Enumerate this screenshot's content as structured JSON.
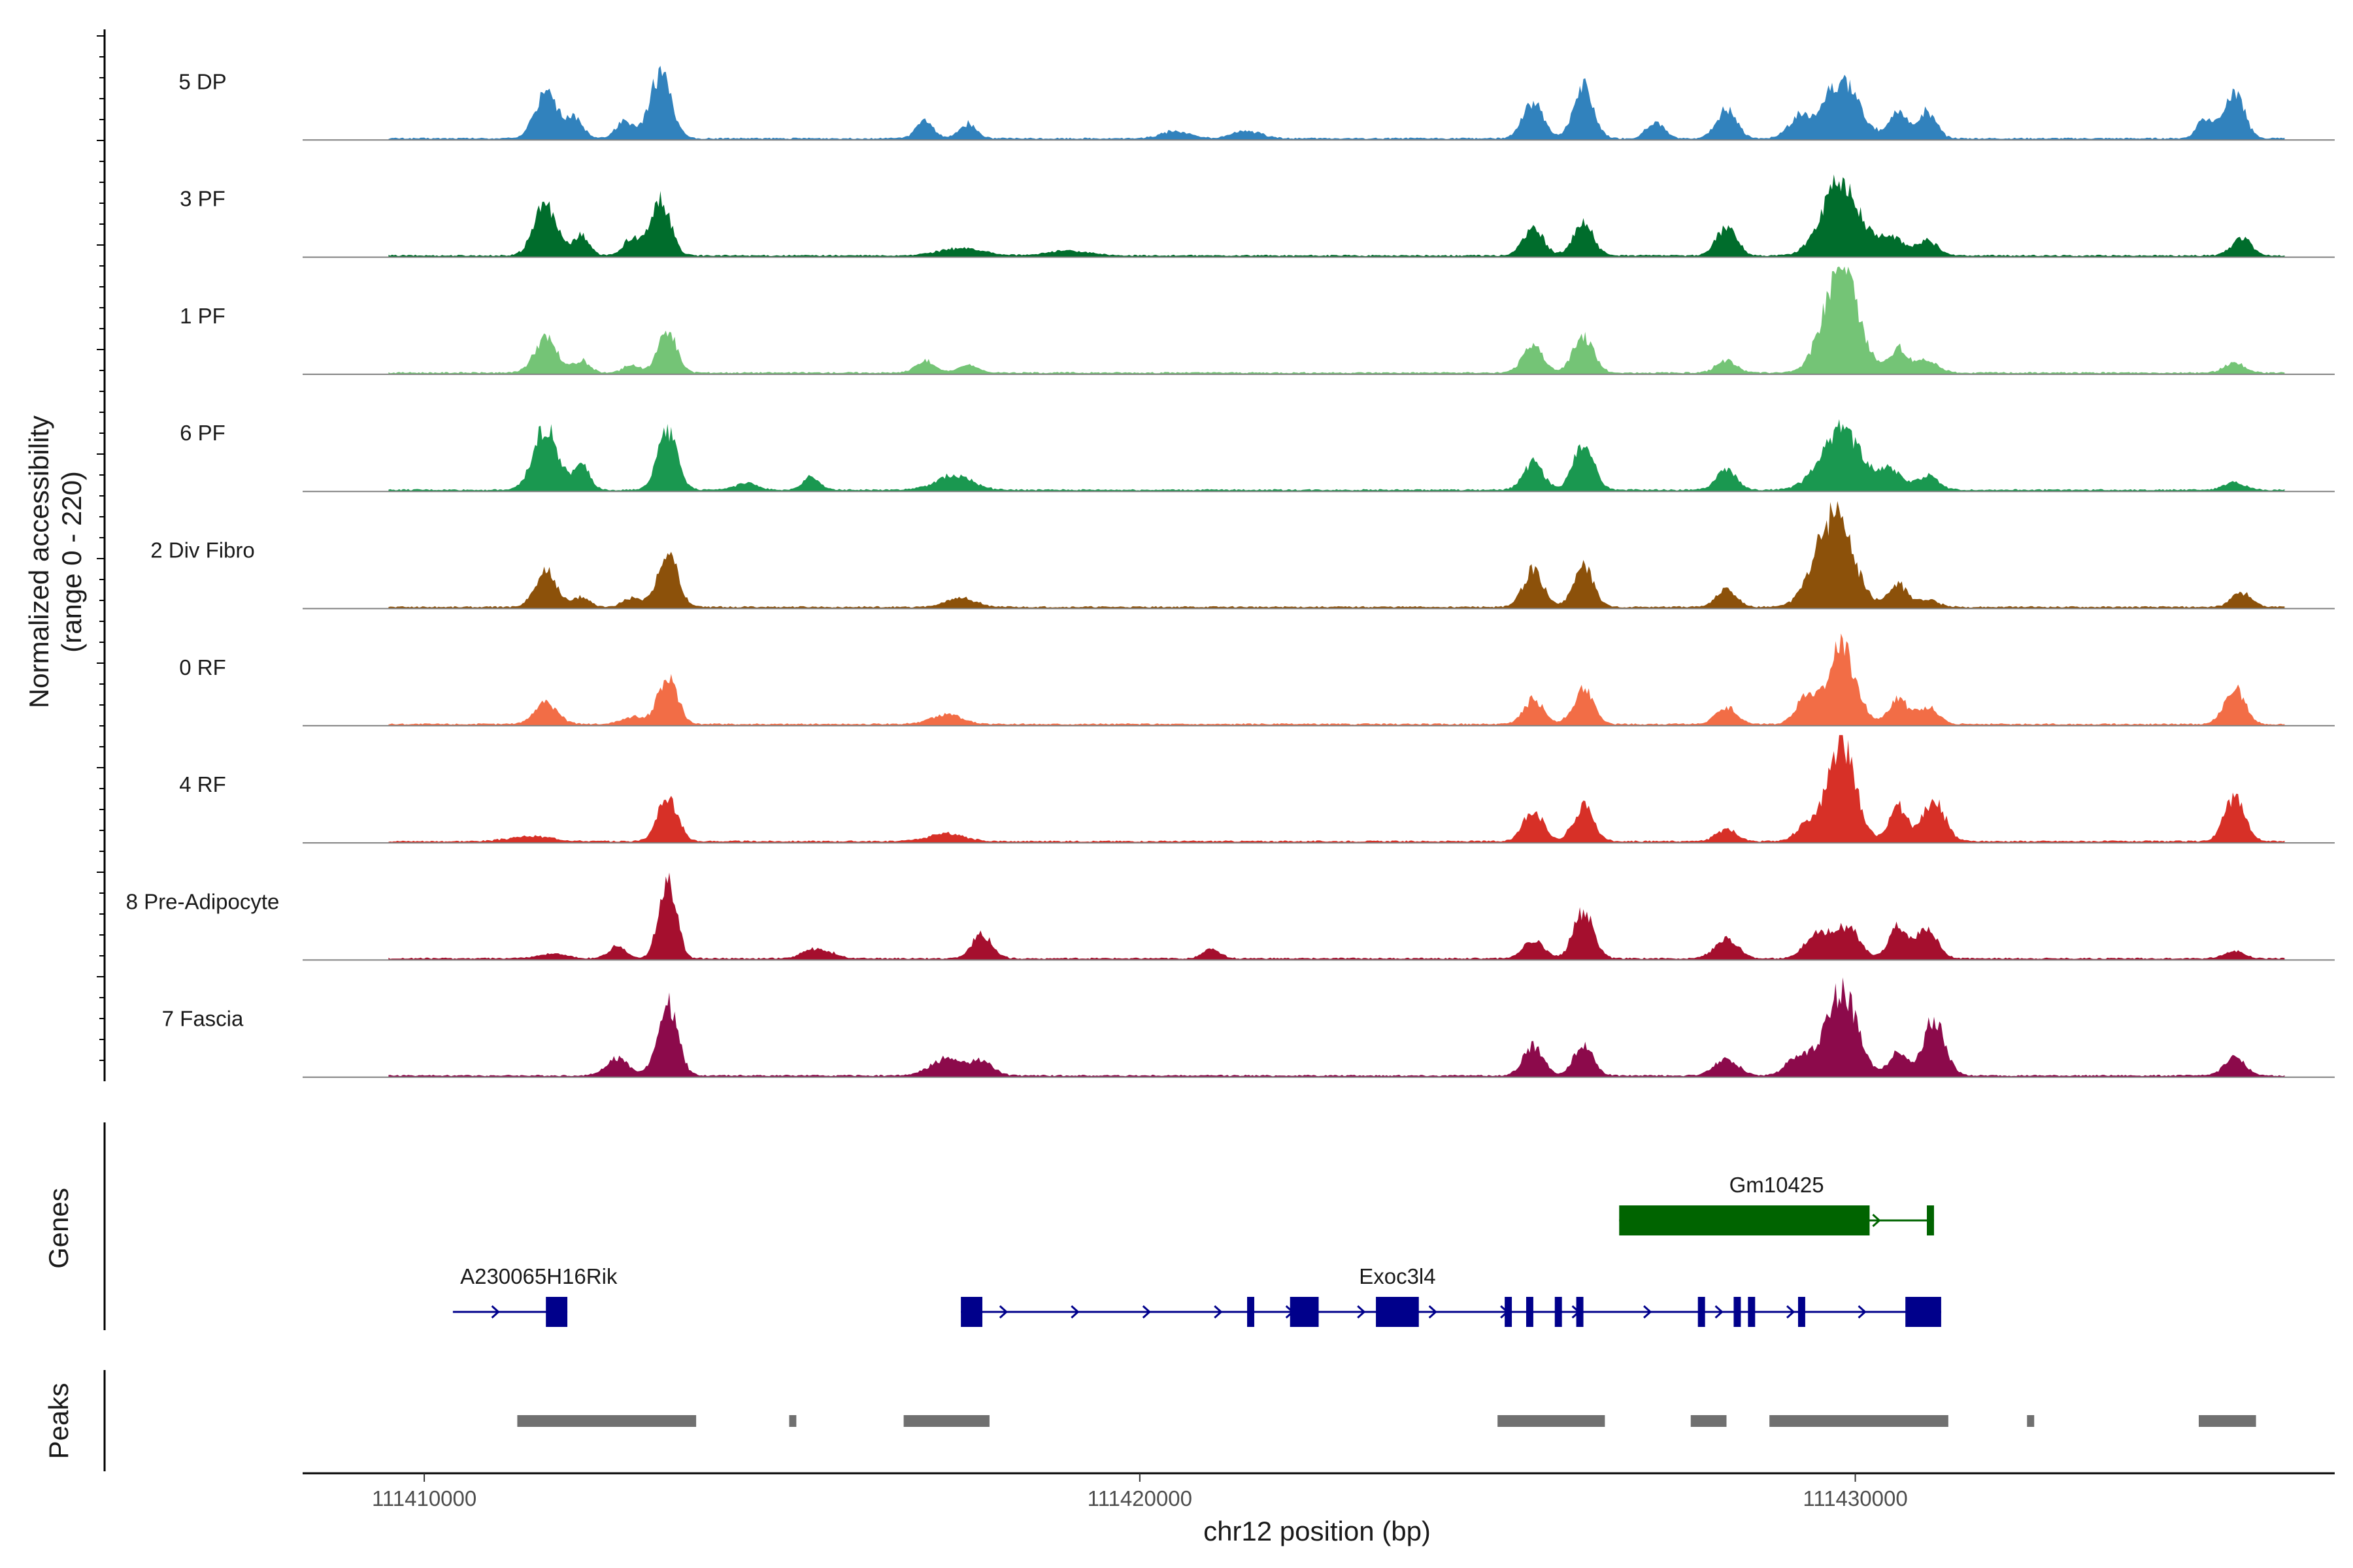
{
  "chart_data": {
    "type": "coverage",
    "chromosome": "chr12",
    "x_range": [
      111408300,
      111436700
    ],
    "y_range": [
      0,
      220
    ],
    "ylabel_line1": "Normalized accessibility",
    "ylabel_line2": "(range 0 - 220)",
    "xlabel": "chr12 position (bp)",
    "x_ticks": [
      {
        "value": 111410000,
        "label": "111410000"
      },
      {
        "value": 111420000,
        "label": "111420000"
      },
      {
        "value": 111430000,
        "label": "111430000"
      }
    ],
    "tracks": [
      {
        "name": "5 DP",
        "color": "#3182bd",
        "peaks": [
          [
            111411700,
            95,
            150
          ],
          [
            111412100,
            45,
            120
          ],
          [
            111412800,
            35,
            120
          ],
          [
            111413300,
            130,
            150
          ],
          [
            111417000,
            35,
            120
          ],
          [
            111417600,
            30,
            120
          ],
          [
            111420500,
            15,
            200
          ],
          [
            111421500,
            15,
            200
          ],
          [
            111425500,
            75,
            140
          ],
          [
            111426200,
            105,
            140
          ],
          [
            111427200,
            35,
            120
          ],
          [
            111428200,
            60,
            140
          ],
          [
            111429200,
            40,
            150
          ],
          [
            111429800,
            120,
            250
          ],
          [
            111430600,
            50,
            130
          ],
          [
            111431000,
            55,
            130
          ],
          [
            111434900,
            40,
            120
          ],
          [
            111435300,
            90,
            140
          ]
        ],
        "baseline": [
          111409500,
          111436000
        ]
      },
      {
        "name": "3 PF",
        "color": "#006d2c",
        "peaks": [
          [
            111411700,
            105,
            160
          ],
          [
            111412200,
            40,
            110
          ],
          [
            111412900,
            35,
            120
          ],
          [
            111413300,
            110,
            140
          ],
          [
            111417500,
            15,
            300
          ],
          [
            111419000,
            10,
            300
          ],
          [
            111425500,
            55,
            140
          ],
          [
            111426200,
            65,
            140
          ],
          [
            111428200,
            60,
            140
          ],
          [
            111429800,
            150,
            260
          ],
          [
            111430500,
            40,
            160
          ],
          [
            111431000,
            30,
            150
          ],
          [
            111435400,
            35,
            140
          ]
        ],
        "baseline": [
          111409500,
          111436000
        ]
      },
      {
        "name": "1 PF",
        "color": "#74c476",
        "peaks": [
          [
            111411700,
            70,
            160
          ],
          [
            111412200,
            25,
            110
          ],
          [
            111412900,
            15,
            120
          ],
          [
            111413400,
            85,
            130
          ],
          [
            111417000,
            25,
            130
          ],
          [
            111417600,
            15,
            150
          ],
          [
            111425500,
            55,
            140
          ],
          [
            111426200,
            75,
            140
          ],
          [
            111428200,
            25,
            140
          ],
          [
            111429800,
            210,
            240
          ],
          [
            111430600,
            50,
            130
          ],
          [
            111431000,
            25,
            150
          ],
          [
            111435300,
            20,
            140
          ]
        ],
        "baseline": [
          111409500,
          111436000
        ]
      },
      {
        "name": "6 PF",
        "color": "#1a9850",
        "peaks": [
          [
            111411700,
            130,
            170
          ],
          [
            111412200,
            50,
            110
          ],
          [
            111413400,
            115,
            140
          ],
          [
            111414500,
            15,
            150
          ],
          [
            111415400,
            25,
            120
          ],
          [
            111417400,
            30,
            250
          ],
          [
            111425500,
            55,
            140
          ],
          [
            111426200,
            95,
            140
          ],
          [
            111428200,
            40,
            140
          ],
          [
            111429800,
            120,
            280
          ],
          [
            111430500,
            40,
            150
          ],
          [
            111431000,
            30,
            150
          ],
          [
            111435300,
            15,
            140
          ]
        ],
        "baseline": [
          111409500,
          111436000
        ]
      },
      {
        "name": "2 Div Fibro",
        "color": "#8c510a",
        "peaks": [
          [
            111411700,
            75,
            150
          ],
          [
            111412200,
            20,
            110
          ],
          [
            111412900,
            20,
            120
          ],
          [
            111413400,
            115,
            140
          ],
          [
            111417500,
            20,
            200
          ],
          [
            111425500,
            75,
            140
          ],
          [
            111426200,
            80,
            140
          ],
          [
            111428200,
            35,
            140
          ],
          [
            111429700,
            185,
            260
          ],
          [
            111430600,
            45,
            130
          ],
          [
            111431000,
            15,
            150
          ],
          [
            111435400,
            30,
            140
          ]
        ],
        "baseline": [
          111409500,
          111436000
        ]
      },
      {
        "name": "0 RF",
        "color": "#f26d46",
        "peaks": [
          [
            111411700,
            45,
            160
          ],
          [
            111412900,
            15,
            150
          ],
          [
            111413400,
            95,
            140
          ],
          [
            111417300,
            20,
            220
          ],
          [
            111425500,
            50,
            140
          ],
          [
            111426200,
            70,
            140
          ],
          [
            111428200,
            35,
            140
          ],
          [
            111429300,
            50,
            140
          ],
          [
            111429800,
            155,
            200
          ],
          [
            111430600,
            50,
            130
          ],
          [
            111431000,
            35,
            150
          ],
          [
            111435300,
            75,
            140
          ]
        ],
        "baseline": [
          111409500,
          111436000
        ]
      },
      {
        "name": "4 RF",
        "color": "#d73027",
        "peaks": [
          [
            111411500,
            10,
            300
          ],
          [
            111413400,
            90,
            140
          ],
          [
            111417300,
            15,
            250
          ],
          [
            111425500,
            65,
            140
          ],
          [
            111426200,
            70,
            140
          ],
          [
            111428200,
            25,
            140
          ],
          [
            111429300,
            30,
            140
          ],
          [
            111429800,
            195,
            200
          ],
          [
            111430600,
            70,
            130
          ],
          [
            111431100,
            85,
            150
          ],
          [
            111435300,
            90,
            140
          ]
        ],
        "baseline": [
          111409500,
          111436000
        ]
      },
      {
        "name": "8 Pre-Adipocyte",
        "color": "#a50f2e",
        "peaks": [
          [
            111411800,
            10,
            200
          ],
          [
            111412700,
            25,
            120
          ],
          [
            111413400,
            170,
            120
          ],
          [
            111415500,
            20,
            200
          ],
          [
            111417800,
            50,
            140
          ],
          [
            111421000,
            20,
            120
          ],
          [
            111425500,
            40,
            140
          ],
          [
            111426200,
            95,
            140
          ],
          [
            111428200,
            40,
            160
          ],
          [
            111429500,
            55,
            180
          ],
          [
            111429900,
            60,
            160
          ],
          [
            111430600,
            65,
            130
          ],
          [
            111431000,
            55,
            150
          ],
          [
            111435300,
            15,
            140
          ]
        ],
        "baseline": [
          111409500,
          111436000
        ]
      },
      {
        "name": "7 Fascia",
        "color": "#8c0a4b",
        "peaks": [
          [
            111412700,
            35,
            160
          ],
          [
            111413400,
            145,
            140
          ],
          [
            111417300,
            35,
            220
          ],
          [
            111417800,
            30,
            150
          ],
          [
            111425500,
            60,
            140
          ],
          [
            111426200,
            60,
            140
          ],
          [
            111428200,
            35,
            160
          ],
          [
            111429200,
            40,
            160
          ],
          [
            111429800,
            175,
            220
          ],
          [
            111430600,
            45,
            130
          ],
          [
            111431100,
            115,
            150
          ],
          [
            111435300,
            40,
            140
          ]
        ],
        "baseline": [
          111409500,
          111436000
        ]
      }
    ],
    "genes": [
      {
        "name": "Gm10425",
        "color": "#006400",
        "start": 111426700,
        "end": 111431100,
        "exons": [
          [
            111426700,
            111430200
          ],
          [
            111431000,
            111431100
          ]
        ],
        "strand": "+"
      },
      {
        "name": "A230065H16Rik",
        "color": "#00008b",
        "start": 111410400,
        "end": 111412000,
        "exons": [
          [
            111411700,
            111412000
          ]
        ],
        "strand": "+"
      },
      {
        "name": "Exoc3l4",
        "color": "#00008b",
        "start": 111417500,
        "end": 111431200,
        "exons": [
          [
            111417500,
            111417800
          ],
          [
            111421500,
            111421600
          ],
          [
            111422100,
            111422500
          ],
          [
            111423300,
            111423900
          ],
          [
            111425100,
            111425200
          ],
          [
            111425400,
            111425500
          ],
          [
            111425800,
            111425900
          ],
          [
            111426100,
            111426200
          ],
          [
            111427800,
            111427900
          ],
          [
            111428300,
            111428400
          ],
          [
            111428500,
            111428600
          ],
          [
            111429200,
            111429300
          ],
          [
            111430700,
            111431200
          ]
        ],
        "strand": "+"
      }
    ],
    "peaks": [
      [
        111411300,
        111413800
      ],
      [
        111415100,
        111415200
      ],
      [
        111416700,
        111417900
      ],
      [
        111425000,
        111426500
      ],
      [
        111427700,
        111428200
      ],
      [
        111428800,
        111431300
      ],
      [
        111432400,
        111432500
      ],
      [
        111434800,
        111435600
      ]
    ],
    "gene_track_title": "Genes",
    "peak_track_title": "Peaks"
  }
}
